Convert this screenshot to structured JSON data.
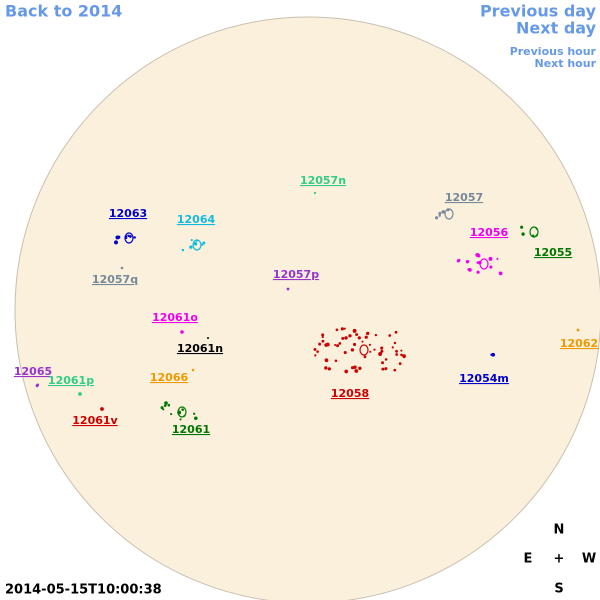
{
  "navigation": {
    "back": "Back to 2014",
    "previous_day": "Previous day",
    "next_day": "Next day",
    "previous_hour": "Previous hour",
    "next_hour": "Next hour"
  },
  "regions": [
    {
      "label": "12057n",
      "color": "#33cc88"
    },
    {
      "label": "12057",
      "color": "#778899"
    },
    {
      "label": "12063",
      "color": "#0000cc"
    },
    {
      "label": "12064",
      "color": "#11bbdd"
    },
    {
      "label": "12056",
      "color": "#ee00ee"
    },
    {
      "label": "12055",
      "color": "#007700"
    },
    {
      "label": "12057q",
      "color": "#778899"
    },
    {
      "label": "12057p",
      "color": "#9933cc"
    },
    {
      "label": "12061o",
      "color": "#ee00ee"
    },
    {
      "label": "12061n",
      "color": "#000000"
    },
    {
      "label": "12062",
      "color": "#ee9900"
    },
    {
      "label": "12065",
      "color": "#9933cc"
    },
    {
      "label": "12061p",
      "color": "#33cc88"
    },
    {
      "label": "12066",
      "color": "#ee9900"
    },
    {
      "label": "12054m",
      "color": "#0000cc"
    },
    {
      "label": "12058",
      "color": "#cc0000"
    },
    {
      "label": "12061v",
      "color": "#cc0000"
    },
    {
      "label": "12061",
      "color": "#007700"
    }
  ],
  "timestamp": "2014-05-15T10:00:38",
  "compass": {
    "north": "N",
    "east": "E",
    "center": "+",
    "west": "W",
    "south": "S"
  }
}
